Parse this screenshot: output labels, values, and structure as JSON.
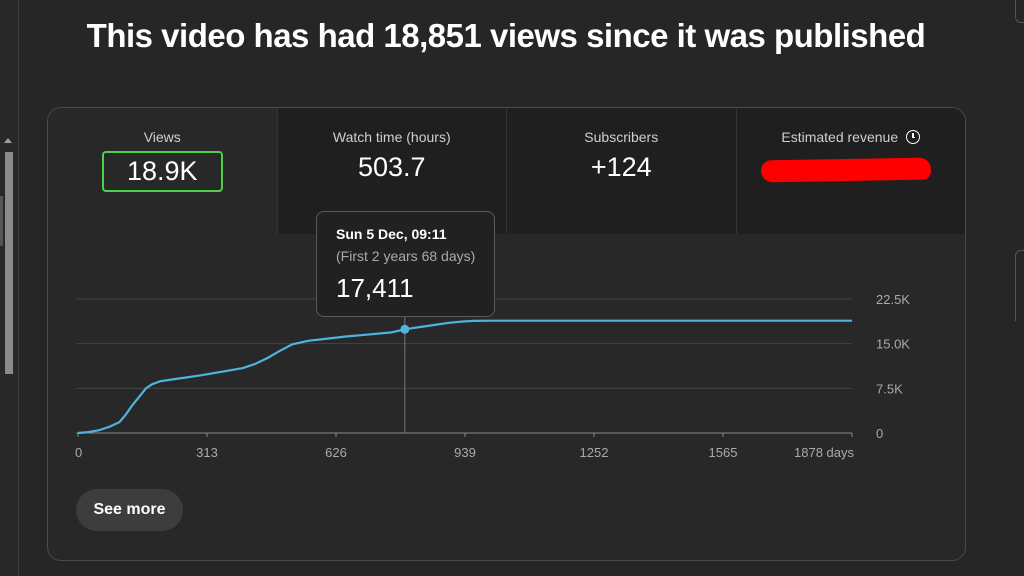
{
  "headline": "This video has had 18,851 views since it was published",
  "stats": [
    {
      "label": "Views",
      "value": "18.9K"
    },
    {
      "label": "Watch time (hours)",
      "value": "503.7"
    },
    {
      "label": "Subscribers",
      "value": "+124"
    },
    {
      "label": "Estimated revenue",
      "value": ""
    }
  ],
  "colors": {
    "accent_line": "#4fb4dd",
    "selected_outline": "#4cd14c",
    "redaction": "#ff0000"
  },
  "icons": {
    "estimated_revenue": "clock-icon"
  },
  "tooltip": {
    "date": "Sun 5 Dec, 09:11",
    "sub": "(First 2 years 68 days)",
    "value": "17,411"
  },
  "chart_data": {
    "type": "line",
    "xlabel": "",
    "ylabel": "",
    "xlim": [
      0,
      1878
    ],
    "ylim": [
      0,
      22500
    ],
    "x_ticks": [
      "0",
      "313",
      "626",
      "939",
      "1252",
      "1565",
      "1878 days"
    ],
    "x_tick_values": [
      0,
      313,
      626,
      939,
      1252,
      1565,
      1878
    ],
    "y_ticks": [
      "0",
      "7.5K",
      "15.0K",
      "22.5K"
    ],
    "y_tick_values": [
      0,
      7500,
      15000,
      22500
    ],
    "grid": true,
    "series": [
      {
        "x": [
          0,
          25,
          50,
          75,
          100,
          115,
          130,
          150,
          165,
          180,
          200,
          230,
          260,
          300,
          350,
          400,
          430,
          460,
          490,
          520,
          560,
          600,
          650,
          700,
          760,
          793,
          830,
          870,
          900,
          930,
          960,
          1000,
          1100,
          1300,
          1500,
          1700,
          1878
        ],
        "y": [
          0,
          150,
          450,
          1000,
          1800,
          3000,
          4500,
          6200,
          7500,
          8200,
          8700,
          9000,
          9300,
          9700,
          10300,
          10900,
          11600,
          12600,
          13800,
          14900,
          15500,
          15800,
          16200,
          16500,
          16900,
          17411,
          17800,
          18200,
          18500,
          18700,
          18820,
          18851,
          18851,
          18851,
          18851,
          18851,
          18851
        ]
      }
    ],
    "hover": {
      "x": 793,
      "y": 17411
    }
  },
  "see_more": "See more"
}
